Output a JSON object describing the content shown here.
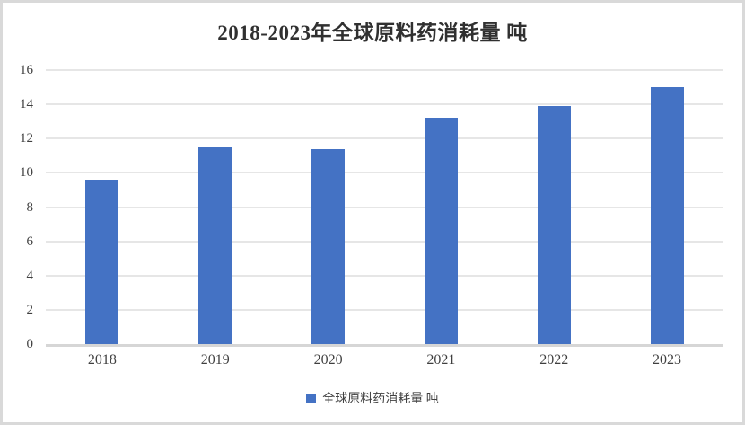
{
  "chart": {
    "title": "2018-2023年全球原料药消耗量 吨",
    "legend_label": "全球原料药消耗量 吨"
  },
  "chart_data": {
    "type": "bar",
    "title": "2018-2023年全球原料药消耗量 吨",
    "categories": [
      "2018",
      "2019",
      "2020",
      "2021",
      "2022",
      "2023"
    ],
    "values": [
      9.6,
      11.5,
      11.4,
      13.2,
      13.9,
      15.0
    ],
    "series_name": "全球原料药消耗量 吨",
    "xlabel": "",
    "ylabel": "",
    "ylim": [
      0,
      16
    ],
    "yticks": [
      0,
      2,
      4,
      6,
      8,
      10,
      12,
      14,
      16
    ],
    "grid": true,
    "legend_position": "bottom",
    "bar_color": "#4472C4",
    "gridline_color": "#E6E6E6",
    "axis_line_color": "#D6D6D6",
    "text_color": "#3F3F3F",
    "frame_border_color": "#D9D9D9",
    "background_color": "#FFFFFF"
  }
}
